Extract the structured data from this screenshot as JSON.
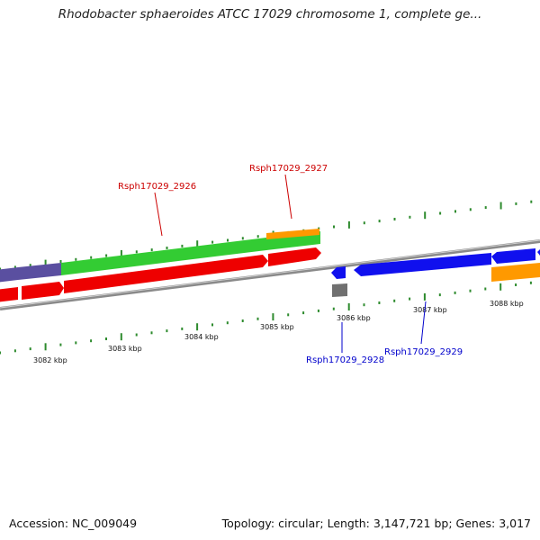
{
  "title": "Rhodobacter sphaeroides ATCC 17029 chromosome 1, complete ge...",
  "footer": {
    "accession": "Accession: NC_009049",
    "summary": "Topology: circular; Length: 3,147,721 bp; Genes: 3,017"
  },
  "colors": {
    "forward_label": "#cc0000",
    "reverse_label": "#0000cc",
    "tick": "#2e8b2e",
    "backbone": "#8a8a8a",
    "cds_forward": "#ee0000",
    "cds_reverse": "#1010ee",
    "gene": "#33cc33",
    "rna_orange": "#ff9900",
    "purple": "#5a4fa0",
    "gray": "#707070"
  },
  "scale": {
    "unit": "kbp",
    "labels": [
      "3082 kbp",
      "3083 kbp",
      "3084 kbp",
      "3085 kbp",
      "3086 kbp",
      "3087 kbp",
      "3088 kbp"
    ]
  },
  "gene_labels": [
    {
      "text": "Rsph17029_2926",
      "strand": "forward"
    },
    {
      "text": "Rsph17029_2927",
      "strand": "forward"
    },
    {
      "text": "Rsph17029_2928",
      "strand": "reverse"
    },
    {
      "text": "Rsph17029_2929",
      "strand": "reverse"
    }
  ]
}
